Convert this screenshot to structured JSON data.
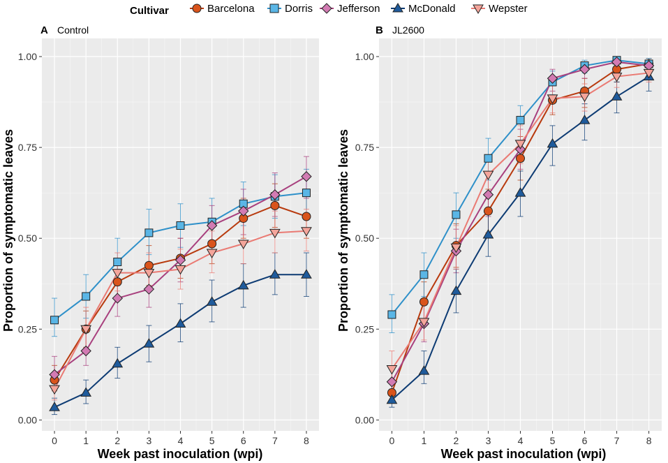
{
  "legend": {
    "title": "Cultivar",
    "entries": [
      "Barcelona",
      "Dorris",
      "Jefferson",
      "McDonald",
      "Wepster"
    ]
  },
  "series_style": {
    "Barcelona": {
      "color": "#b83a0e",
      "fill": "#d9541c",
      "marker": "circle"
    },
    "Dorris": {
      "color": "#2e90c9",
      "fill": "#5ab6e6",
      "marker": "square"
    },
    "Jefferson": {
      "color": "#a8407e",
      "fill": "#d27bb3",
      "marker": "diamond"
    },
    "McDonald": {
      "color": "#0d3b73",
      "fill": "#1f5b9c",
      "marker": "triangle-up"
    },
    "Wepster": {
      "color": "#ea7a73",
      "fill": "#f4a59b",
      "marker": "triangle-down"
    }
  },
  "chart_data": [
    {
      "type": "line",
      "panel_label": "A",
      "title": "Control",
      "xlabel": "Week past inoculation (wpi)",
      "ylabel": "Proportion of symptomatic leaves",
      "x": [
        0,
        1,
        2,
        3,
        4,
        5,
        6,
        7,
        8
      ],
      "xlim": [
        -0.4,
        8.4
      ],
      "ylim": [
        -0.03,
        1.05
      ],
      "yticks": [
        "0.00",
        "0.25",
        "0.50",
        "0.75",
        "1.00"
      ],
      "ytick_values": [
        0,
        0.25,
        0.5,
        0.75,
        1.0
      ],
      "series": [
        {
          "name": "Barcelona",
          "values": [
            0.11,
            0.25,
            0.38,
            0.425,
            0.445,
            0.485,
            0.555,
            0.59,
            0.56
          ],
          "lower": [
            0.08,
            0.2,
            0.33,
            0.37,
            0.39,
            0.43,
            0.5,
            0.53,
            0.5
          ],
          "upper": [
            0.15,
            0.3,
            0.43,
            0.48,
            0.5,
            0.54,
            0.61,
            0.65,
            0.62
          ]
        },
        {
          "name": "Dorris",
          "values": [
            0.275,
            0.34,
            0.435,
            0.515,
            0.535,
            0.545,
            0.595,
            0.615,
            0.625
          ],
          "lower": [
            0.23,
            0.28,
            0.37,
            0.455,
            0.475,
            0.485,
            0.535,
            0.555,
            0.565
          ],
          "upper": [
            0.335,
            0.4,
            0.5,
            0.58,
            0.595,
            0.61,
            0.655,
            0.675,
            0.69
          ]
        },
        {
          "name": "Jefferson",
          "values": [
            0.125,
            0.19,
            0.335,
            0.36,
            0.44,
            0.535,
            0.575,
            0.62,
            0.67
          ],
          "lower": [
            0.09,
            0.15,
            0.285,
            0.31,
            0.38,
            0.48,
            0.51,
            0.56,
            0.61
          ],
          "upper": [
            0.175,
            0.25,
            0.39,
            0.42,
            0.5,
            0.59,
            0.635,
            0.68,
            0.725
          ]
        },
        {
          "name": "McDonald",
          "values": [
            0.035,
            0.075,
            0.155,
            0.21,
            0.265,
            0.325,
            0.37,
            0.4,
            0.4
          ],
          "lower": [
            0.015,
            0.045,
            0.115,
            0.16,
            0.215,
            0.27,
            0.31,
            0.345,
            0.34
          ],
          "upper": [
            0.06,
            0.11,
            0.2,
            0.26,
            0.32,
            0.385,
            0.43,
            0.46,
            0.46
          ]
        },
        {
          "name": "Wepster",
          "values": [
            0.085,
            0.25,
            0.405,
            0.405,
            0.415,
            0.46,
            0.485,
            0.515,
            0.52
          ],
          "lower": [
            0.055,
            0.2,
            0.355,
            0.355,
            0.36,
            0.405,
            0.43,
            0.46,
            0.465
          ],
          "upper": [
            0.125,
            0.31,
            0.46,
            0.46,
            0.47,
            0.52,
            0.545,
            0.575,
            0.58
          ]
        }
      ]
    },
    {
      "type": "line",
      "panel_label": "B",
      "title": "JL2600",
      "xlabel": "Week past inoculation (wpi)",
      "ylabel": "Proportion of symptomatic leaves",
      "x": [
        0,
        1,
        2,
        3,
        4,
        5,
        6,
        7,
        8
      ],
      "xlim": [
        -0.4,
        8.4
      ],
      "ylim": [
        -0.03,
        1.05
      ],
      "yticks": [
        "0.00",
        "0.25",
        "0.50",
        "0.75",
        "1.00"
      ],
      "ytick_values": [
        0,
        0.25,
        0.5,
        0.75,
        1.0
      ],
      "series": [
        {
          "name": "Barcelona",
          "values": [
            0.075,
            0.325,
            0.48,
            0.575,
            0.72,
            0.88,
            0.905,
            0.965,
            0.98
          ],
          "lower": [
            0.05,
            0.27,
            0.42,
            0.515,
            0.66,
            0.84,
            0.86,
            0.93,
            0.96
          ],
          "upper": [
            0.11,
            0.38,
            0.54,
            0.635,
            0.78,
            0.92,
            0.94,
            0.99,
            0.995
          ]
        },
        {
          "name": "Dorris",
          "values": [
            0.29,
            0.4,
            0.565,
            0.72,
            0.825,
            0.93,
            0.975,
            0.99,
            0.98
          ],
          "lower": [
            0.24,
            0.34,
            0.5,
            0.66,
            0.77,
            0.895,
            0.955,
            0.975,
            0.96
          ],
          "upper": [
            0.345,
            0.46,
            0.625,
            0.775,
            0.865,
            0.96,
            0.99,
            0.997,
            0.995
          ]
        },
        {
          "name": "Jefferson",
          "values": [
            0.105,
            0.265,
            0.465,
            0.62,
            0.745,
            0.94,
            0.965,
            0.985,
            0.975
          ],
          "lower": [
            0.07,
            0.215,
            0.405,
            0.56,
            0.69,
            0.905,
            0.94,
            0.97,
            0.955
          ],
          "upper": [
            0.145,
            0.32,
            0.525,
            0.68,
            0.8,
            0.965,
            0.985,
            0.995,
            0.99
          ]
        },
        {
          "name": "McDonald",
          "values": [
            0.055,
            0.135,
            0.355,
            0.51,
            0.625,
            0.76,
            0.825,
            0.89,
            0.945
          ],
          "lower": [
            0.035,
            0.1,
            0.295,
            0.45,
            0.56,
            0.7,
            0.77,
            0.845,
            0.905
          ],
          "upper": [
            0.085,
            0.19,
            0.415,
            0.57,
            0.685,
            0.81,
            0.87,
            0.93,
            0.97
          ]
        },
        {
          "name": "Wepster",
          "values": [
            0.14,
            0.27,
            0.475,
            0.675,
            0.76,
            0.885,
            0.89,
            0.945,
            0.955
          ],
          "lower": [
            0.105,
            0.22,
            0.415,
            0.615,
            0.705,
            0.845,
            0.85,
            0.915,
            0.93
          ],
          "upper": [
            0.19,
            0.33,
            0.535,
            0.73,
            0.81,
            0.92,
            0.925,
            0.97,
            0.975
          ]
        }
      ]
    }
  ]
}
